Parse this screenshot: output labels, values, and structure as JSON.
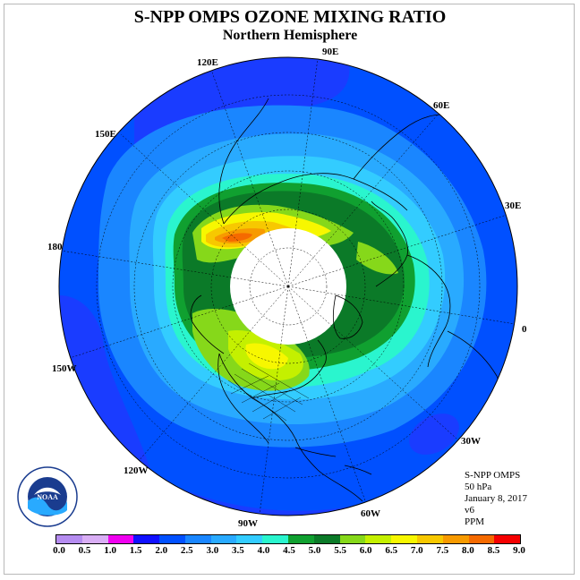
{
  "title": "S-NPP OMPS OZONE MIXING RATIO",
  "subtitle": "Northern Hemisphere",
  "longitude_labels": [
    "90E",
    "60E",
    "30E",
    "0",
    "30W",
    "60W",
    "90W",
    "120W",
    "150W",
    "180",
    "150E",
    "120E"
  ],
  "info": {
    "instrument": "S-NPP OMPS",
    "pressure": "50 hPa",
    "date": "January 8, 2017",
    "version": "v6",
    "units": "PPM"
  },
  "colorbar": {
    "ticks": [
      "0.0",
      "0.5",
      "1.0",
      "1.5",
      "2.0",
      "2.5",
      "3.0",
      "3.5",
      "4.0",
      "4.5",
      "5.0",
      "5.5",
      "6.0",
      "6.5",
      "7.0",
      "7.5",
      "8.0",
      "8.5",
      "9.0"
    ],
    "colors": [
      "#b58cf0",
      "#d9aef5",
      "#f000f0",
      "#1010ff",
      "#0050ff",
      "#1a86ff",
      "#29aaff",
      "#33ccff",
      "#2af5ce",
      "#10a030",
      "#0b7a28",
      "#86d81a",
      "#c4f000",
      "#f7f700",
      "#f7c800",
      "#f79a00",
      "#f56a00",
      "#f50000",
      "#8a6a52"
    ]
  },
  "map_colors": {
    "ocean_dark": "#1a3cff",
    "blue_2": "#0050ff",
    "blue_25": "#1a86ff",
    "blue_3": "#29aaff",
    "blue_35": "#33ccff",
    "cyan_4": "#2af5ce",
    "green_45": "#10a030",
    "green_5": "#0b7a28",
    "lime_55": "#86d81a",
    "yellow_6": "#c4f000",
    "yellow_65": "#f7f700",
    "orange_7": "#f7c800",
    "orange_75": "#f79a00",
    "red_8": "#f56a00",
    "pole_hole": "#ffffff"
  }
}
